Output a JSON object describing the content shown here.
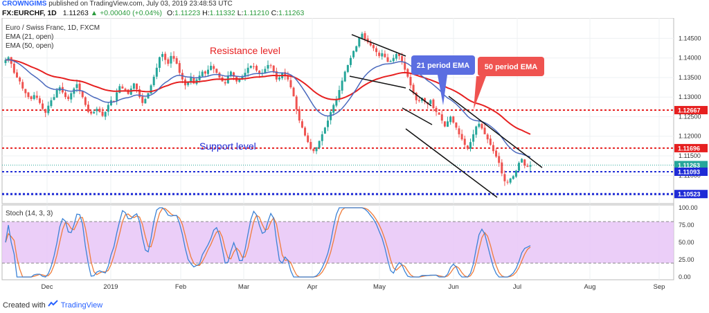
{
  "header": {
    "author": "CROWNGIMS",
    "published_text": "published on TradingView.com, July 03, 2019 23:48:53 UTC"
  },
  "ticker": {
    "symbol": "FX:EURCHF, 1D",
    "last": "1.11263",
    "change": "+0.00040 (+0.04%)",
    "O": "1.11223",
    "H": "1.11332",
    "L": "1.11210",
    "C": "1.11263",
    "labels": {
      "O": "O:",
      "H": "H:",
      "L": "L:",
      "C": "C:"
    }
  },
  "legend": {
    "title": "Euro / Swiss Franc, 1D, FXCM",
    "ema21": "EMA (21, open)",
    "ema50": "EMA (50, open)"
  },
  "annotations": {
    "resistance": "Resistance level",
    "support": "Support level",
    "ema21_callout": "21 period EMA",
    "ema50_callout": "50 period EMA"
  },
  "colors": {
    "up": "#26a69a",
    "down": "#ef5350",
    "ema21": "#4a69bd",
    "ema50": "#e62020",
    "resistance_line": "#e62020",
    "support_line": "#1f2bd6",
    "stoch_band": "#e8c6f7",
    "stoch_k": "#3b82d6",
    "stoch_d": "#f07c3a",
    "callout_blue": "#5b6ee1",
    "callout_red": "#ef5350"
  },
  "price_axis": {
    "ticks": [
      "1.14500",
      "1.14000",
      "1.13500",
      "1.13000",
      "1.12500",
      "1.12000",
      "1.11500",
      "1.11000",
      "1.10500"
    ],
    "tick_values": [
      1.145,
      1.14,
      1.135,
      1.13,
      1.125,
      1.12,
      1.115,
      1.11,
      1.105
    ],
    "tags": [
      {
        "value": 1.12667,
        "label": "1.12667",
        "color": "#e62020"
      },
      {
        "value": 1.11696,
        "label": "1.11696",
        "color": "#e62020"
      },
      {
        "value": 1.11263,
        "label": "1.11263",
        "color": "#26a69a"
      },
      {
        "value": 1.11093,
        "label": "1.11093",
        "color": "#1f2bd6"
      },
      {
        "value": 1.10523,
        "label": "1.10523",
        "color": "#1f2bd6"
      }
    ]
  },
  "stoch": {
    "title": "Stoch (14, 3, 3)",
    "ticks": [
      "100.00",
      "75.00",
      "50.00",
      "25.00",
      "0.00"
    ],
    "tick_values": [
      100,
      75,
      50,
      25,
      0
    ],
    "upper": 80,
    "lower": 20
  },
  "time_axis": {
    "labels": [
      "Dec",
      "2019",
      "Feb",
      "Mar",
      "Apr",
      "May",
      "Jun",
      "Jul",
      "Aug",
      "Sep"
    ]
  },
  "chart_data": {
    "type": "candlestick",
    "title": "Euro / Swiss Franc, 1D, FXCM",
    "ylim": [
      1.1035,
      1.1495
    ],
    "levels": [
      {
        "name": "Resistance level",
        "value": 1.12667
      },
      {
        "name": "Support level",
        "value": 1.11696
      },
      {
        "name": "support",
        "value": 1.11093
      },
      {
        "name": "support",
        "value": 1.10523
      }
    ],
    "close_series": [
      1.1395,
      1.1402,
      1.1385,
      1.1362,
      1.135,
      1.134,
      1.1322,
      1.131,
      1.13,
      1.1295,
      1.1305,
      1.1298,
      1.1285,
      1.127,
      1.126,
      1.1278,
      1.1292,
      1.13,
      1.1318,
      1.1325,
      1.1312,
      1.13,
      1.1295,
      1.131,
      1.1322,
      1.1333,
      1.1315,
      1.13,
      1.128,
      1.1262,
      1.1258,
      1.1262,
      1.127,
      1.1262,
      1.1252,
      1.1262,
      1.128,
      1.1292,
      1.129,
      1.1312,
      1.1328,
      1.1322,
      1.1318,
      1.1308,
      1.1322,
      1.1335,
      1.132,
      1.13,
      1.1285,
      1.1295,
      1.131,
      1.133,
      1.1352,
      1.1375,
      1.1402,
      1.141,
      1.1395,
      1.1385,
      1.1405,
      1.1398,
      1.1385,
      1.1362,
      1.1345,
      1.133,
      1.134,
      1.135,
      1.1335,
      1.1345,
      1.1355,
      1.1365,
      1.136,
      1.137,
      1.138,
      1.1372,
      1.1362,
      1.135,
      1.134,
      1.1335,
      1.1355,
      1.1365,
      1.1352,
      1.134,
      1.1345,
      1.1352,
      1.1362,
      1.1375,
      1.138,
      1.1378,
      1.1368,
      1.136,
      1.1362,
      1.1372,
      1.1382,
      1.138,
      1.1365,
      1.1345,
      1.135,
      1.1362,
      1.1355,
      1.1345,
      1.1325,
      1.1302,
      1.1268,
      1.124,
      1.1222,
      1.1202,
      1.1185,
      1.117,
      1.1162,
      1.1172,
      1.1188,
      1.1205,
      1.1222,
      1.124,
      1.1262,
      1.128,
      1.1295,
      1.1318,
      1.1342,
      1.1365,
      1.1382,
      1.14,
      1.1418,
      1.143,
      1.1452,
      1.1462,
      1.1448,
      1.144,
      1.1432,
      1.1425,
      1.1415,
      1.1405,
      1.1412,
      1.1402,
      1.139,
      1.1392,
      1.14,
      1.141,
      1.1405,
      1.1392,
      1.137,
      1.1352,
      1.133,
      1.131,
      1.1292,
      1.129,
      1.1298,
      1.1288,
      1.1282,
      1.1292,
      1.1272,
      1.1262,
      1.1255,
      1.124,
      1.1225,
      1.1238,
      1.125,
      1.1235,
      1.1222,
      1.1205,
      1.1192,
      1.1178,
      1.1168,
      1.1185,
      1.1205,
      1.1225,
      1.1232,
      1.122,
      1.1205,
      1.1192,
      1.1178,
      1.1162,
      1.1148,
      1.1132,
      1.1105,
      1.1085,
      1.1082,
      1.1092,
      1.1098,
      1.1112,
      1.1132,
      1.1142,
      1.1125,
      1.1122,
      1.1126
    ]
  }
}
